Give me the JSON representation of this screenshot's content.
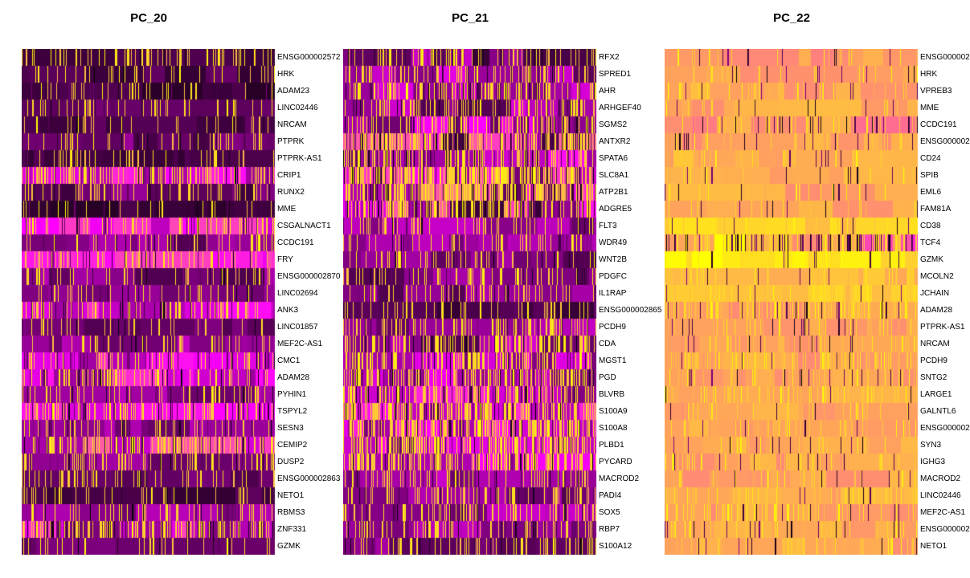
{
  "chart_data": [
    {
      "type": "heatmap",
      "title": "PC_20",
      "genes": [
        "ENSG000002572",
        "HRK",
        "ADAM23",
        "LINC02446",
        "NRCAM",
        "PTPRK",
        "PTPRK-AS1",
        "CRIP1",
        "RUNX2",
        "MME",
        "CSGALNACT1",
        "CCDC191",
        "FRY",
        "ENSG000002870",
        "LINC02694",
        "ANK3",
        "LINC01857",
        "MEF2C-AS1",
        "CMC1",
        "ADAM28",
        "PYHIN1",
        "TSPYL2",
        "SESN3",
        "CEMIP2",
        "DUSP2",
        "ENSG000002863",
        "NETO1",
        "RBMS3",
        "ZNF331",
        "GZMK"
      ],
      "row_base": [
        0.12,
        0.15,
        0.12,
        0.18,
        0.15,
        0.22,
        0.15,
        0.45,
        0.2,
        0.1,
        0.5,
        0.25,
        0.55,
        0.25,
        0.25,
        0.45,
        0.2,
        0.3,
        0.45,
        0.45,
        0.3,
        0.55,
        0.3,
        0.5,
        0.25,
        0.2,
        0.15,
        0.3,
        0.45,
        0.2
      ],
      "row_spread": [
        0.05,
        0.05,
        0.05,
        0.05,
        0.05,
        0.1,
        0.05,
        0.15,
        0.1,
        0.05,
        0.15,
        0.1,
        0.1,
        0.1,
        0.05,
        0.15,
        0.05,
        0.1,
        0.15,
        0.15,
        0.1,
        0.15,
        0.1,
        0.2,
        0.1,
        0.05,
        0.05,
        0.1,
        0.25,
        0.05
      ],
      "row_hot": [
        0.2,
        0.12,
        0.1,
        0.12,
        0.08,
        0.14,
        0.1,
        0.3,
        0.15,
        0.08,
        0.15,
        0.12,
        0.12,
        0.12,
        0.1,
        0.15,
        0.1,
        0.1,
        0.15,
        0.18,
        0.15,
        0.2,
        0.15,
        0.25,
        0.18,
        0.15,
        0.1,
        0.15,
        0.25,
        0.1
      ],
      "cells": 300,
      "seed": 2011
    },
    {
      "type": "heatmap",
      "title": "PC_21",
      "genes": [
        "RFX2",
        "SPRED1",
        "AHR",
        "ARHGEF40",
        "SGMS2",
        "ANTXR2",
        "SPATA6",
        "SLC8A1",
        "ATP2B1",
        "ADGRE5",
        "FLT3",
        "WDR49",
        "WNT2B",
        "PDGFC",
        "IL1RAP",
        "ENSG000002865",
        "PCDH9",
        "CDA",
        "MGST1",
        "PGD",
        "BLVRB",
        "S100A9",
        "S100A8",
        "PLBD1",
        "PYCARD",
        "MACROD2",
        "PADI4",
        "SOX5",
        "RBP7",
        "S100A12"
      ],
      "row_base": [
        0.25,
        0.3,
        0.3,
        0.3,
        0.35,
        0.4,
        0.35,
        0.45,
        0.45,
        0.45,
        0.3,
        0.3,
        0.25,
        0.25,
        0.25,
        0.15,
        0.3,
        0.3,
        0.35,
        0.35,
        0.4,
        0.45,
        0.45,
        0.4,
        0.4,
        0.3,
        0.25,
        0.3,
        0.3,
        0.25
      ],
      "row_spread": [
        0.15,
        0.15,
        0.15,
        0.15,
        0.15,
        0.35,
        0.2,
        0.3,
        0.4,
        0.35,
        0.1,
        0.1,
        0.1,
        0.1,
        0.1,
        0.05,
        0.1,
        0.15,
        0.15,
        0.15,
        0.2,
        0.15,
        0.15,
        0.15,
        0.15,
        0.1,
        0.1,
        0.1,
        0.1,
        0.1
      ],
      "row_hot": [
        0.18,
        0.2,
        0.22,
        0.2,
        0.25,
        0.3,
        0.3,
        0.45,
        0.35,
        0.3,
        0.15,
        0.15,
        0.15,
        0.15,
        0.15,
        0.1,
        0.25,
        0.3,
        0.3,
        0.35,
        0.35,
        0.45,
        0.45,
        0.4,
        0.35,
        0.2,
        0.2,
        0.2,
        0.2,
        0.2
      ],
      "cells": 300,
      "seed": 2021
    },
    {
      "type": "heatmap",
      "title": "PC_22",
      "genes": [
        "ENSG000002",
        "HRK",
        "VPREB3",
        "MME",
        "CCDC191",
        "ENSG000002",
        "CD24",
        "SPIB",
        "EML6",
        "FAM81A",
        "CD38",
        "TCF4",
        "GZMK",
        "MCOLN2",
        "JCHAIN",
        "ADAM28",
        "PTPRK-AS1",
        "NRCAM",
        "PCDH9",
        "SNTG2",
        "LARGE1",
        "GALNTL6",
        "ENSG000002",
        "SYN3",
        "IGHG3",
        "MACROD2",
        "LINC02446",
        "MEF2C-AS1",
        "ENSG000002",
        "NETO1"
      ],
      "row_base": [
        0.8,
        0.82,
        0.82,
        0.82,
        0.78,
        0.82,
        0.85,
        0.85,
        0.82,
        0.82,
        0.9,
        0.8,
        0.95,
        0.88,
        0.9,
        0.8,
        0.82,
        0.82,
        0.82,
        0.82,
        0.82,
        0.82,
        0.82,
        0.82,
        0.82,
        0.82,
        0.85,
        0.82,
        0.82,
        0.82
      ],
      "row_spread": [
        0.05,
        0.05,
        0.05,
        0.05,
        0.1,
        0.05,
        0.05,
        0.05,
        0.05,
        0.05,
        0.05,
        0.3,
        0.05,
        0.05,
        0.05,
        0.1,
        0.05,
        0.05,
        0.05,
        0.05,
        0.05,
        0.05,
        0.05,
        0.05,
        0.05,
        0.05,
        0.05,
        0.05,
        0.05,
        0.05
      ],
      "row_hot": [
        0.08,
        0.06,
        0.06,
        0.03,
        0.1,
        0.05,
        0.05,
        0.06,
        0.05,
        0.05,
        0.08,
        0.2,
        0.05,
        0.08,
        0.1,
        0.3,
        0.08,
        0.08,
        0.25,
        0.12,
        0.2,
        0.08,
        0.08,
        0.08,
        0.12,
        0.06,
        0.12,
        0.15,
        0.08,
        0.1
      ],
      "cells": 300,
      "seed": 2031
    }
  ],
  "colors": {
    "low": "#000000",
    "mid": "#ff00ff",
    "high": "#ffff00"
  }
}
